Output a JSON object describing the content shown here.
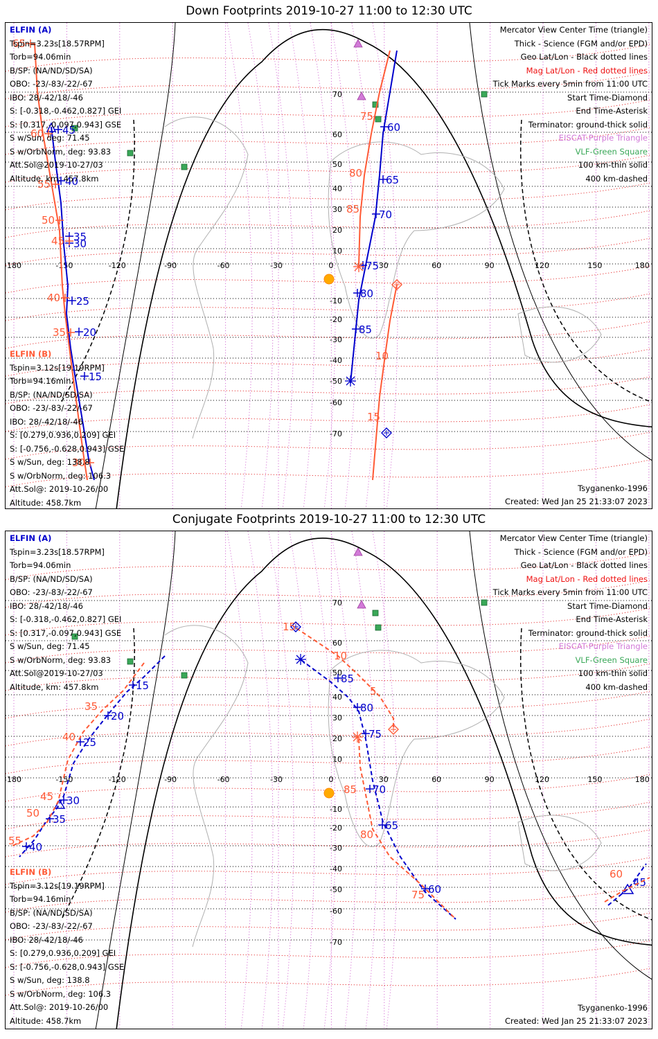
{
  "panels": [
    {
      "title": "Down Footprints 2019-10-27 11:00 to 12:30 UTC",
      "elfin_a": {
        "name": "ELFIN (A)",
        "lines": [
          "Tspin=3.23s[18.57RPM]",
          "Torb=94.06min",
          "B/SP: (NA/ND/SD/SA)",
          "OBO: -23/-83/-22/-67",
          "IBO: 28/-42/18/-46",
          "S: [-0.318,-0.462,0.827] GEI",
          "S: [0.317,-0.097,0.943] GSE",
          "S w/Sun, deg: 71.45",
          "S w/OrbNorm, deg: 93.83",
          "Att.Sol@2019-10-27/03",
          "Altitude, km: 457.8km"
        ]
      },
      "elfin_b": {
        "name": "ELFIN (B)",
        "lines": [
          "Tspin=3.12s[19.19RPM]",
          "Torb=94.16min",
          "B/SP: (NA/ND/SD/SA)",
          "OBO: -23/-83/-22/-67",
          "IBO: 28/-42/18/-46",
          "S: [0.279,0.936,0.209] GEI",
          "S: [-0.756,-0.628,0.943] GSE",
          "S w/Sun, deg: 138.8",
          "S w/OrbNorm, deg: 106.3",
          "Att.Sol@: 2019-10-26/00",
          "Altitude: 458.7km"
        ]
      },
      "legend": [
        {
          "text": "Mercator View Center Time (triangle)",
          "color": "#000000"
        },
        {
          "text": "Thick - Science (FGM and/or EPD)",
          "color": "#000000"
        },
        {
          "text": "Geo Lat/Lon - Black dotted lines",
          "color": "#000000"
        },
        {
          "text": "Mag Lat/Lon - Red dotted lines",
          "color": "#ee1111"
        },
        {
          "text": "Tick Marks every 5min from 11:00 UTC",
          "color": "#000000"
        },
        {
          "text": "Start Time-Diamond",
          "color": "#000000"
        },
        {
          "text": "End Time-Asterisk",
          "color": "#000000"
        },
        {
          "text": "Terminator: ground-thick solid",
          "color": "#000000"
        },
        {
          "text": "EISCAT-Purple Triangle",
          "color": "#d27ad8"
        },
        {
          "text": "VLF-Green Square",
          "color": "#3aa858"
        },
        {
          "text": "100 km-thin solid",
          "color": "#000000"
        },
        {
          "text": "400 km-dashed",
          "color": "#000000"
        }
      ],
      "model": "Tsyganenko-1996",
      "created": "Created: Wed Jan 25 21:33:07 2023",
      "lon_ticks": [
        "-180",
        "-150",
        "-120",
        "-90",
        "-60",
        "-30",
        "0",
        "30",
        "60",
        "90",
        "120",
        "150",
        "180"
      ],
      "lat_ticks": [
        "70",
        "60",
        "50",
        "40",
        "30",
        "20",
        "10",
        "-10",
        "-20",
        "-30",
        "-40",
        "-50",
        "-60",
        "-70"
      ],
      "traces": {
        "a_left_labels": [
          "45",
          "40",
          "35",
          "30",
          "25",
          "20",
          "15",
          "10"
        ],
        "b_left_labels": [
          "65",
          "60",
          "55",
          "50",
          "45",
          "40",
          "35",
          "30",
          "25"
        ],
        "a_right_labels": [
          "60",
          "65",
          "70",
          "75",
          "80",
          "85"
        ],
        "b_right_labels": [
          "75",
          "80",
          "85",
          "10",
          "15"
        ]
      }
    },
    {
      "title": "Conjugate Footprints 2019-10-27 11:00 to 12:30 UTC",
      "elfin_a": {
        "name": "ELFIN (A)",
        "lines": [
          "Tspin=3.23s[18.57RPM]",
          "Torb=94.06min",
          "B/SP: (NA/ND/SD/SA)",
          "OBO: -23/-83/-22/-67",
          "IBO: 28/-42/18/-46",
          "S: [-0.318,-0.462,0.827] GEI",
          "S: [0.317,-0.097,0.943] GSE",
          "S w/Sun, deg: 71.45",
          "S w/OrbNorm, deg: 93.83",
          "Att.Sol@2019-10-27/03",
          "Altitude, km: 457.8km"
        ]
      },
      "elfin_b": {
        "name": "ELFIN (B)",
        "lines": [
          "Tspin=3.12s[19.19RPM]",
          "Torb=94.16min",
          "B/SP: (NA/ND/SD/SA)",
          "OBO: -23/-83/-22/-67",
          "IBO: 28/-42/18/-46",
          "S: [0.279,0.936,0.209] GEI",
          "S: [-0.756,-0.628,0.943] GSE",
          "S w/Sun, deg: 138.8",
          "S w/OrbNorm, deg: 106.3",
          "Att.Sol@: 2019-10-26/00",
          "Altitude: 458.7km"
        ]
      },
      "legend": [
        {
          "text": "Mercator View Center Time (triangle)",
          "color": "#000000"
        },
        {
          "text": "Thick - Science (FGM and/or EPD)",
          "color": "#000000"
        },
        {
          "text": "Geo Lat/Lon - Black dotted lines",
          "color": "#000000"
        },
        {
          "text": "Mag Lat/Lon - Red dotted lines",
          "color": "#ee1111"
        },
        {
          "text": "Tick Marks every 5min from 11:00 UTC",
          "color": "#000000"
        },
        {
          "text": "Start Time-Diamond",
          "color": "#000000"
        },
        {
          "text": "End Time-Asterisk",
          "color": "#000000"
        },
        {
          "text": "Terminator: ground-thick solid",
          "color": "#000000"
        },
        {
          "text": "EISCAT-Purple Triangle",
          "color": "#d27ad8"
        },
        {
          "text": "VLF-Green Square",
          "color": "#3aa858"
        },
        {
          "text": "100 km-thin solid",
          "color": "#000000"
        },
        {
          "text": "400 km-dashed",
          "color": "#000000"
        }
      ],
      "model": "Tsyganenko-1996",
      "created": "Created: Wed Jan 25 21:33:07 2023",
      "lon_ticks": [
        "-180",
        "-150",
        "-120",
        "-90",
        "-60",
        "-30",
        "0",
        "30",
        "60",
        "90",
        "120",
        "150",
        "180"
      ],
      "lat_ticks": [
        "70",
        "60",
        "50",
        "40",
        "30",
        "20",
        "10",
        "-10",
        "-20",
        "-30",
        "-40",
        "-50",
        "-60",
        "-70"
      ],
      "traces": {
        "a_left_labels": [
          "15",
          "20",
          "25",
          "30",
          "35",
          "40"
        ],
        "b_left_labels": [
          "35",
          "40",
          "45",
          "50",
          "55"
        ],
        "a_right_labels": [
          "85",
          "80",
          "75",
          "70",
          "65",
          "60",
          "45"
        ],
        "b_right_labels": [
          "15",
          "10",
          "5",
          "85",
          "80",
          "75",
          "60"
        ]
      }
    }
  ],
  "colors": {
    "elfin_a": "#0000cc",
    "elfin_b": "#ff5a36",
    "mag_grid": "#ee1111",
    "geo_grid": "#000000",
    "eiscat": "#d27ad8",
    "vlf": "#3aa858",
    "sun": "#ffaa00"
  }
}
